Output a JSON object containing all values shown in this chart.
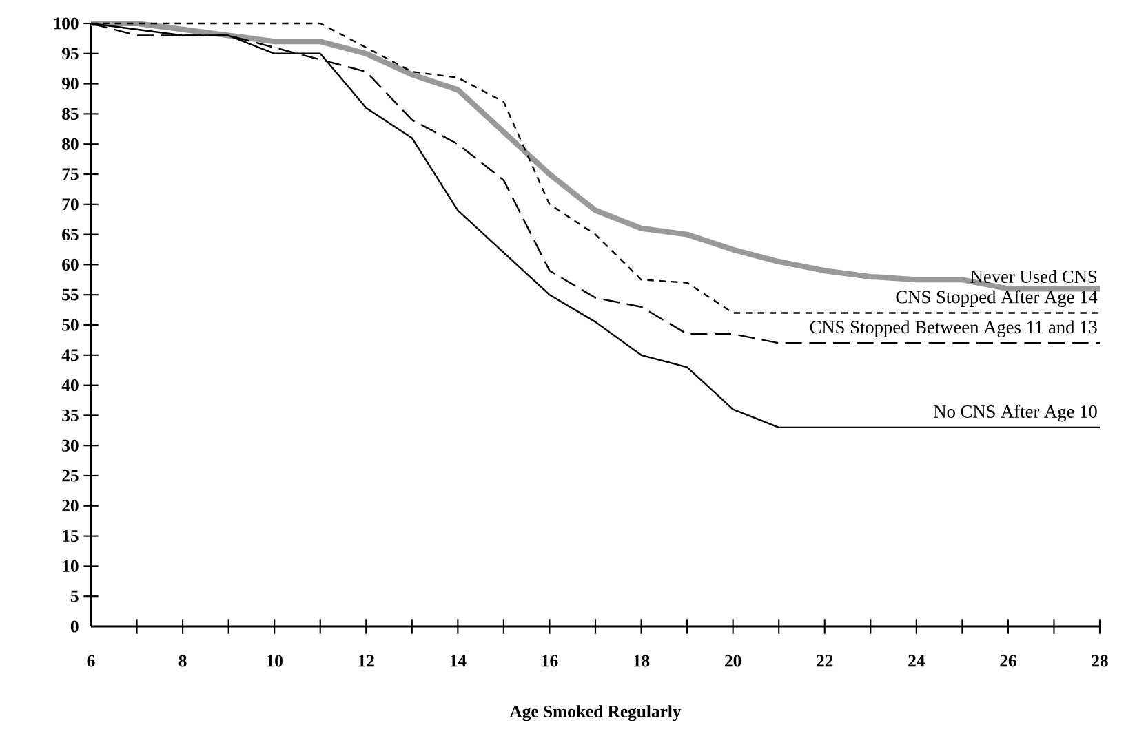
{
  "chart_data": {
    "type": "line",
    "xlabel": "Age Smoked Regularly",
    "x": [
      6,
      7,
      8,
      9,
      10,
      11,
      12,
      13,
      14,
      15,
      16,
      17,
      18,
      19,
      20,
      21,
      22,
      23,
      24,
      25,
      26,
      27,
      28
    ],
    "series": [
      {
        "name": "Never Used CNS",
        "color": "#999999",
        "line_style": "solid",
        "values": [
          100,
          100,
          99,
          98,
          97,
          97,
          95,
          91.5,
          89,
          82,
          75,
          69,
          66,
          65,
          62.5,
          60.5,
          59,
          58,
          57.5,
          57.5,
          56,
          56,
          56
        ]
      },
      {
        "name": "CNS Stopped After Age 14",
        "color": "#000000",
        "line_style": "dotted",
        "values": [
          100,
          100,
          100,
          100,
          100,
          100,
          96,
          92,
          91,
          87,
          70,
          65,
          57.5,
          57,
          52,
          52,
          52,
          52,
          52,
          52,
          52,
          52,
          52
        ]
      },
      {
        "name": "CNS Stopped Between Ages 11 and 13",
        "color": "#000000",
        "line_style": "dashed",
        "values": [
          100,
          98,
          98,
          98,
          96,
          94,
          92,
          84,
          80,
          74,
          59,
          54.5,
          53,
          48.5,
          48.5,
          47,
          47,
          47,
          47,
          47,
          47,
          47,
          47
        ]
      },
      {
        "name": "No CNS After Age 10",
        "color": "#000000",
        "line_style": "solid",
        "values": [
          100,
          99,
          98,
          98,
          95,
          95,
          86,
          81,
          69,
          62,
          55,
          50.5,
          45,
          43,
          36,
          33,
          33,
          33,
          33,
          33,
          33,
          33,
          33
        ]
      }
    ],
    "xlim": [
      6,
      28
    ],
    "xticks": [
      6,
      {
        "value": 7,
        "label": null
      },
      8,
      {
        "value": 9,
        "label": null
      },
      10,
      {
        "value": 11,
        "label": null
      },
      12,
      {
        "value": 13,
        "label": null
      },
      14,
      {
        "value": 15,
        "label": null
      },
      16,
      {
        "value": 17,
        "label": null
      },
      18,
      {
        "value": 19,
        "label": null
      },
      20,
      {
        "value": 21,
        "label": null
      },
      22,
      {
        "value": 23,
        "label": null
      },
      24,
      {
        "value": 25,
        "label": null
      },
      26,
      {
        "value": 27,
        "label": null
      },
      28
    ],
    "ylim": [
      0,
      100
    ],
    "yticks": [
      0,
      5,
      10,
      15,
      20,
      25,
      30,
      35,
      40,
      45,
      50,
      55,
      60,
      65,
      70,
      75,
      80,
      85,
      90,
      95,
      100
    ],
    "grid": false,
    "marker": "none"
  }
}
